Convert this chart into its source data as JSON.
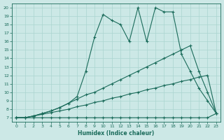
{
  "xlabel": "Humidex (Indice chaleur)",
  "bg_color": "#cce8e6",
  "line_color": "#1a6b5a",
  "grid_color": "#aad4d0",
  "xlim": [
    -0.5,
    23.5
  ],
  "ylim": [
    6.5,
    20.5
  ],
  "xtick_labels": [
    "0",
    "1",
    "2",
    "3",
    "4",
    "5",
    "6",
    "7",
    "8",
    "9",
    "10",
    "11",
    "12",
    "13",
    "14",
    "15",
    "16",
    "17",
    "18",
    "19",
    "20",
    "21",
    "22",
    "23"
  ],
  "ytick_labels": [
    "7",
    "8",
    "9",
    "10",
    "11",
    "12",
    "13",
    "14",
    "15",
    "16",
    "17",
    "18",
    "19",
    "20"
  ],
  "ytick_vals": [
    7,
    8,
    9,
    10,
    11,
    12,
    13,
    14,
    15,
    16,
    17,
    18,
    19,
    20
  ],
  "series": [
    {
      "x": [
        0,
        1,
        2,
        3,
        4,
        5,
        6,
        7,
        8,
        9,
        10,
        11,
        12,
        13,
        14,
        15,
        16,
        17,
        18,
        19,
        20,
        21,
        22,
        23
      ],
      "y": [
        7,
        7,
        7,
        7,
        7,
        7,
        7,
        7,
        7,
        7,
        7,
        7,
        7,
        7,
        7,
        7,
        7,
        7,
        7,
        7,
        7,
        7,
        7,
        7.5
      ]
    },
    {
      "x": [
        0,
        1,
        2,
        3,
        4,
        5,
        6,
        7,
        8,
        9,
        10,
        11,
        12,
        13,
        14,
        15,
        16,
        17,
        18,
        19,
        20,
        21,
        22,
        23
      ],
      "y": [
        7,
        7,
        7.2,
        7.4,
        7.6,
        7.8,
        8.0,
        8.3,
        8.5,
        8.8,
        9.0,
        9.3,
        9.5,
        9.8,
        10.0,
        10.3,
        10.5,
        10.8,
        11.0,
        11.3,
        11.5,
        11.8,
        12.0,
        7.5
      ]
    },
    {
      "x": [
        0,
        1,
        2,
        3,
        4,
        5,
        6,
        7,
        8,
        9,
        10,
        11,
        12,
        13,
        14,
        15,
        16,
        17,
        18,
        19,
        20,
        21,
        22,
        23
      ],
      "y": [
        7,
        7,
        7.2,
        7.5,
        7.8,
        8.2,
        8.7,
        9.2,
        9.7,
        10.0,
        10.5,
        11.0,
        11.5,
        12.0,
        12.5,
        13.0,
        13.5,
        14.0,
        14.5,
        15.0,
        15.5,
        12.5,
        10.0,
        7.5
      ]
    },
    {
      "x": [
        0,
        1,
        2,
        3,
        4,
        5,
        6,
        7,
        8,
        9,
        10,
        11,
        12,
        13,
        14,
        15,
        16,
        17,
        18,
        19,
        20,
        21,
        22,
        23
      ],
      "y": [
        7,
        7,
        7.2,
        7.5,
        7.8,
        8.2,
        8.7,
        9.5,
        12.5,
        16.5,
        19.2,
        18.5,
        18.0,
        16.0,
        20.0,
        16.0,
        20.0,
        19.5,
        19.5,
        14.5,
        12.5,
        10.5,
        9.0,
        7.5
      ]
    }
  ]
}
